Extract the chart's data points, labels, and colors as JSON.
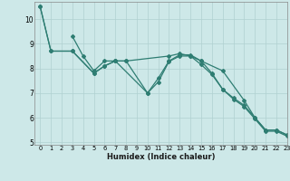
{
  "xlabel": "Humidex (Indice chaleur)",
  "background_color": "#cde8e8",
  "grid_color": "#b0d0d0",
  "line_color": "#2e7d72",
  "xlim": [
    -0.5,
    23
  ],
  "ylim": [
    4.9,
    10.7
  ],
  "yticks": [
    5,
    6,
    7,
    8,
    9,
    10
  ],
  "xticks": [
    0,
    1,
    2,
    3,
    4,
    5,
    6,
    7,
    8,
    9,
    10,
    11,
    12,
    13,
    14,
    15,
    16,
    17,
    18,
    19,
    20,
    21,
    22,
    23
  ],
  "line1_x": [
    0,
    1,
    3,
    5,
    6,
    7,
    10,
    11,
    12,
    13,
    14,
    15,
    17,
    19,
    20,
    21,
    22,
    23
  ],
  "line1_y": [
    10.5,
    8.7,
    8.7,
    7.8,
    8.1,
    8.3,
    7.0,
    7.6,
    8.3,
    8.55,
    8.55,
    8.3,
    7.9,
    6.7,
    6.0,
    5.5,
    5.5,
    5.3
  ],
  "line2_x": [
    3,
    4,
    5,
    6,
    7,
    8,
    12,
    13,
    14,
    15,
    16,
    17,
    18,
    19,
    20,
    21,
    22,
    23
  ],
  "line2_y": [
    9.3,
    8.5,
    7.9,
    8.3,
    8.3,
    8.3,
    8.5,
    8.6,
    8.5,
    8.3,
    7.8,
    7.15,
    6.8,
    6.5,
    6.0,
    5.5,
    5.5,
    5.3
  ],
  "line3_x": [
    0,
    1,
    3,
    5,
    6,
    7,
    8,
    10,
    11,
    12,
    13,
    14,
    15,
    16,
    17,
    18,
    19,
    20,
    21,
    22,
    23
  ],
  "line3_y": [
    10.5,
    8.7,
    8.7,
    7.8,
    8.1,
    8.3,
    8.3,
    7.0,
    7.45,
    8.28,
    8.5,
    8.5,
    8.15,
    7.75,
    7.15,
    6.75,
    6.45,
    5.95,
    5.45,
    5.45,
    5.25
  ]
}
